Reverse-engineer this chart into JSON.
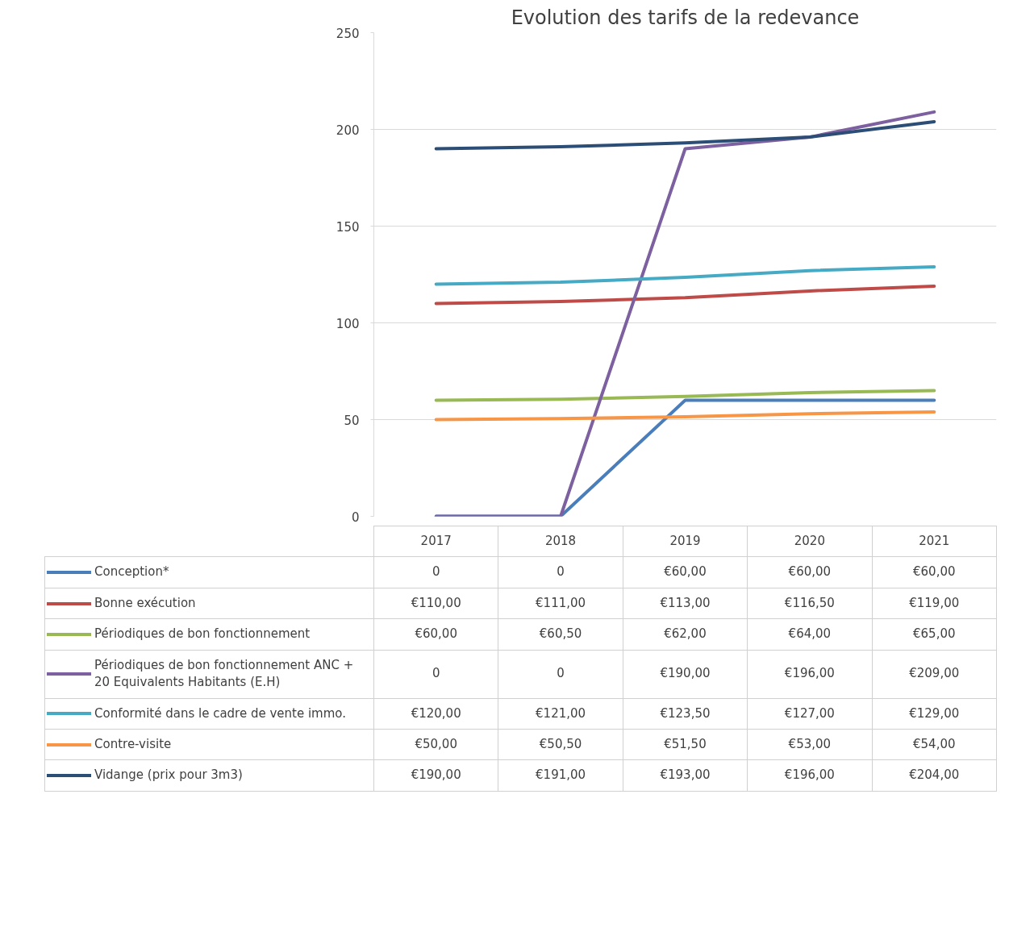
{
  "chart_data": {
    "type": "line",
    "title": "Evolution des tarifs de la redevance",
    "categories": [
      "2017",
      "2018",
      "2019",
      "2020",
      "2021"
    ],
    "legend": "bottom",
    "ylim": [
      0,
      250
    ],
    "yticks": [
      0,
      50,
      100,
      150,
      200,
      250
    ],
    "grid": "y",
    "series": [
      {
        "name": "Conception*",
        "color": "#4a7ebb",
        "values": [
          0,
          0,
          60,
          60,
          60
        ],
        "value_labels": [
          "0",
          "0",
          "€60,00",
          "€60,00",
          "€60,00"
        ]
      },
      {
        "name": "Bonne exécution",
        "color": "#be4b48",
        "values": [
          110,
          111,
          113,
          116.5,
          119
        ],
        "value_labels": [
          "€110,00",
          "€111,00",
          "€113,00",
          "€116,50",
          "€119,00"
        ]
      },
      {
        "name": "Périodiques de bon fonctionnement",
        "color": "#98b954",
        "values": [
          60,
          60.5,
          62,
          64,
          65
        ],
        "value_labels": [
          "€60,00",
          "€60,50",
          "€62,00",
          "€64,00",
          "€65,00"
        ]
      },
      {
        "name": "Périodiques de bon fonctionnement ANC + 20 Equivalents Habitants (E.H)",
        "color": "#7d60a0",
        "values": [
          0,
          0,
          190,
          196,
          209
        ],
        "value_labels": [
          "0",
          "0",
          "€190,00",
          "€196,00",
          "€209,00"
        ]
      },
      {
        "name": "Conformité dans le cadre de vente immo.",
        "color": "#46aac5",
        "values": [
          120,
          121,
          123.5,
          127,
          129
        ],
        "value_labels": [
          "€120,00",
          "€121,00",
          "€123,50",
          "€127,00",
          "€129,00"
        ]
      },
      {
        "name": "Contre-visite",
        "color": "#f79646",
        "values": [
          50,
          50.5,
          51.5,
          53,
          54
        ],
        "value_labels": [
          "€50,00",
          "€50,50",
          "€51,50",
          "€53,00",
          "€54,00"
        ]
      },
      {
        "name": "Vidange (prix pour 3m3)",
        "color": "#2c4d75",
        "values": [
          190,
          191,
          193,
          196,
          204
        ],
        "value_labels": [
          "€190,00",
          "€191,00",
          "€193,00",
          "€196,00",
          "€204,00"
        ]
      }
    ]
  }
}
